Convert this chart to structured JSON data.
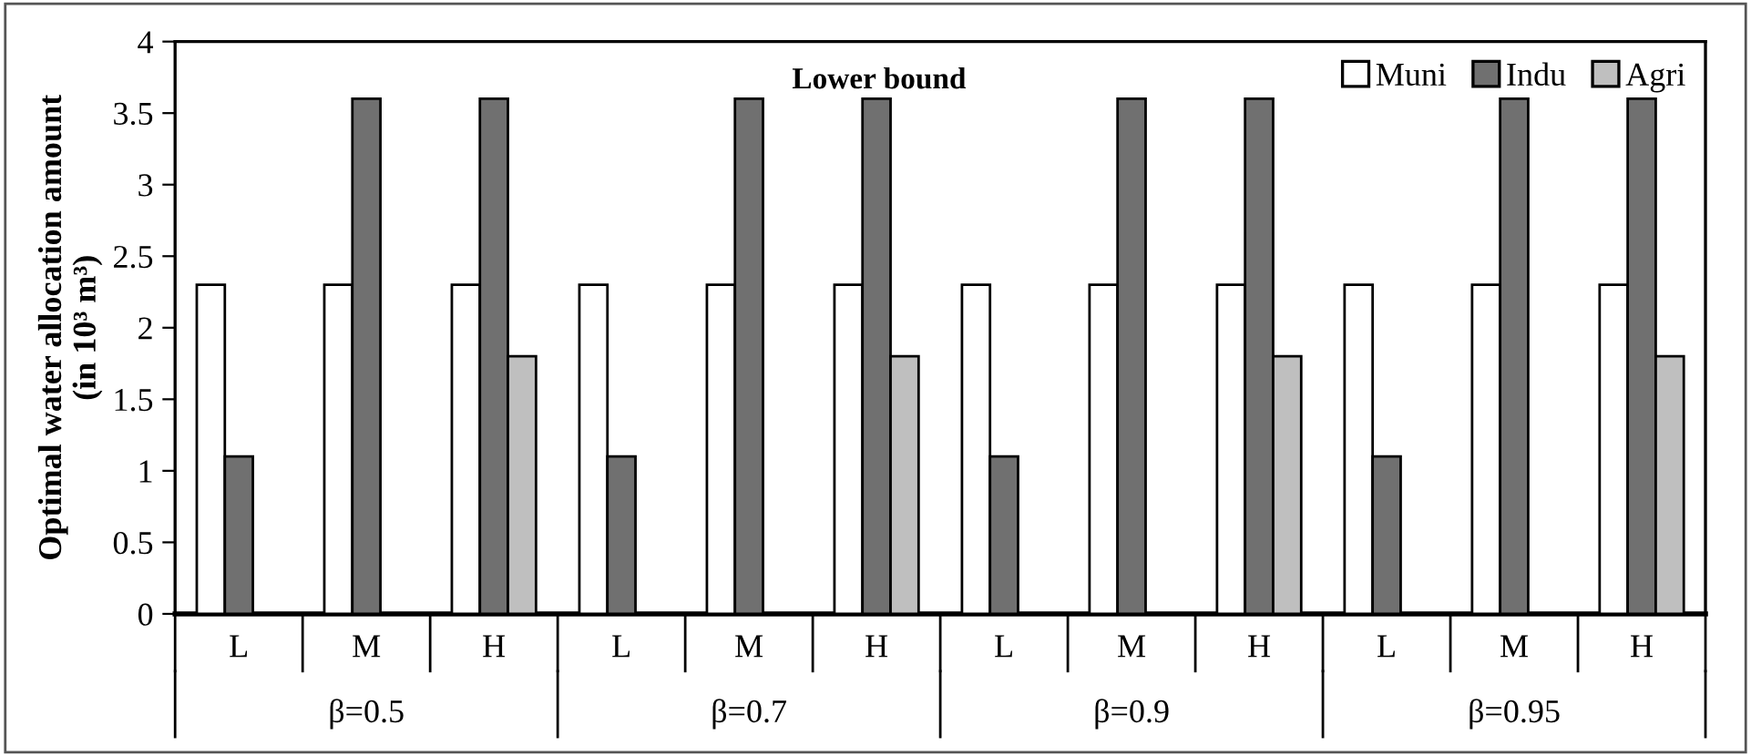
{
  "chart_data": {
    "type": "bar",
    "title": "Lower bound",
    "ylabel": "Optimal water allocation amount\n(in 10³ m³)",
    "categories": [
      "L",
      "M",
      "H",
      "L",
      "M",
      "H",
      "L",
      "M",
      "H",
      "L",
      "M",
      "H"
    ],
    "series": [
      {
        "name": "Muni",
        "color": "#ffffff",
        "values": [
          2.3,
          2.3,
          2.3,
          2.3,
          2.3,
          2.3,
          2.3,
          2.3,
          2.3,
          2.3,
          2.3,
          2.3
        ]
      },
      {
        "name": "Indu",
        "color": "#707070",
        "values": [
          1.1,
          3.6,
          3.6,
          1.1,
          3.6,
          3.6,
          1.1,
          3.6,
          3.6,
          1.1,
          3.6,
          3.6
        ]
      },
      {
        "name": "Agri",
        "color": "#bfbfbf",
        "values": [
          null,
          null,
          1.8,
          null,
          null,
          1.8,
          null,
          null,
          1.8,
          null,
          null,
          1.8
        ]
      }
    ],
    "annotations": [
      "β=0.5",
      "β=0.7",
      "β=0.9",
      "β=0.95"
    ],
    "ylim": [
      0,
      4
    ],
    "yticks": [
      0,
      0.5,
      1,
      1.5,
      2,
      2.5,
      3,
      3.5,
      4
    ],
    "grid": false,
    "legend": "top right"
  }
}
